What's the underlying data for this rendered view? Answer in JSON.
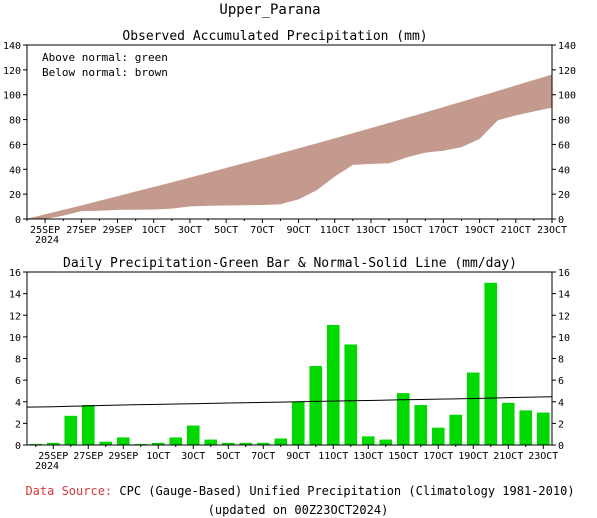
{
  "page_title": "Upper_Parana",
  "footer": {
    "source_label": "Data Source:",
    "source_text": "CPC (Gauge-Based) Unified Precipitation (Climatology 1981-2010)",
    "updated": "(updated on 00Z23OCT2024)",
    "source_label_color": "#d43a3a"
  },
  "chart_data": [
    {
      "type": "area",
      "title": "Observed Accumulated Precipitation (mm)",
      "legend_lines": [
        "Above normal: green",
        "Below normal: brown"
      ],
      "colors": {
        "above": "#00d000",
        "below": "#c49a8e"
      },
      "ylim": [
        0,
        140
      ],
      "yticks": [
        0,
        20,
        40,
        60,
        80,
        100,
        120,
        140
      ],
      "x": [
        "24SEP",
        "25SEP",
        "26SEP",
        "27SEP",
        "28SEP",
        "29SEP",
        "30SEP",
        "1OCT",
        "2OCT",
        "3OCT",
        "4OCT",
        "5OCT",
        "6OCT",
        "7OCT",
        "8OCT",
        "9OCT",
        "10OCT",
        "11OCT",
        "12OCT",
        "13OCT",
        "14OCT",
        "15OCT",
        "16OCT",
        "17OCT",
        "18OCT",
        "19OCT",
        "20OCT",
        "21OCT",
        "22OCT",
        "23OCT"
      ],
      "xtick_labels": [
        "25SEP",
        "27SEP",
        "29SEP",
        "1OCT",
        "3OCT",
        "5OCT",
        "7OCT",
        "9OCT",
        "11OCT",
        "13OCT",
        "15OCT",
        "17OCT",
        "19OCT",
        "21OCT",
        "23OCT"
      ],
      "year_label": "2024",
      "series": [
        {
          "name": "Observed",
          "values": [
            0,
            0.2,
            2.9,
            6.6,
            6.9,
            7.6,
            7.7,
            7.9,
            8.6,
            10.4,
            10.9,
            11.1,
            11.3,
            11.5,
            12.1,
            16.1,
            23.4,
            34.5,
            43.8,
            44.6,
            45.1,
            49.9,
            53.6,
            55.2,
            58.0,
            64.7,
            79.7,
            83.6,
            86.8,
            89.8
          ]
        },
        {
          "name": "Normal",
          "values": [
            0,
            3.5,
            7.1,
            10.7,
            14.4,
            18.1,
            21.8,
            25.5,
            29.3,
            33.1,
            36.9,
            40.8,
            44.7,
            48.6,
            52.6,
            56.6,
            60.6,
            64.7,
            68.8,
            72.9,
            77.1,
            81.3,
            85.5,
            89.8,
            94.1,
            98.4,
            102.8,
            107.2,
            111.6,
            116.0
          ]
        }
      ]
    },
    {
      "type": "bar",
      "title": "Daily Precipitation-Green Bar & Normal-Solid Line (mm/day)",
      "colors": {
        "bar": "#00d800",
        "line": "#000000"
      },
      "ylim": [
        0,
        16
      ],
      "yticks": [
        0,
        2,
        4,
        6,
        8,
        10,
        12,
        14,
        16
      ],
      "categories": [
        "24SEP",
        "25SEP",
        "26SEP",
        "27SEP",
        "28SEP",
        "29SEP",
        "30SEP",
        "1OCT",
        "2OCT",
        "3OCT",
        "4OCT",
        "5OCT",
        "6OCT",
        "7OCT",
        "8OCT",
        "9OCT",
        "10OCT",
        "11OCT",
        "12OCT",
        "13OCT",
        "14OCT",
        "15OCT",
        "16OCT",
        "17OCT",
        "18OCT",
        "19OCT",
        "20OCT",
        "21OCT",
        "22OCT",
        "23OCT"
      ],
      "xtick_labels": [
        "25SEP",
        "27SEP",
        "29SEP",
        "1OCT",
        "3OCT",
        "5OCT",
        "7OCT",
        "9OCT",
        "11OCT",
        "13OCT",
        "15OCT",
        "17OCT",
        "19OCT",
        "21OCT",
        "23OCT"
      ],
      "year_label": "2024",
      "series": [
        {
          "name": "Daily",
          "values": [
            0.1,
            0.2,
            2.7,
            3.7,
            0.3,
            0.7,
            0.1,
            0.2,
            0.7,
            1.8,
            0.5,
            0.2,
            0.2,
            0.2,
            0.6,
            4.0,
            7.3,
            11.1,
            9.3,
            0.8,
            0.5,
            4.8,
            3.7,
            1.6,
            2.8,
            6.7,
            15.0,
            3.9,
            3.2,
            3.0
          ]
        },
        {
          "name": "Normal",
          "values": [
            3.5,
            3.54,
            3.58,
            3.62,
            3.66,
            3.7,
            3.73,
            3.76,
            3.79,
            3.82,
            3.85,
            3.88,
            3.91,
            3.94,
            3.97,
            4.0,
            4.03,
            4.06,
            4.09,
            4.12,
            4.15,
            4.18,
            4.21,
            4.24,
            4.27,
            4.3,
            4.34,
            4.38,
            4.42,
            4.46
          ]
        }
      ]
    }
  ]
}
